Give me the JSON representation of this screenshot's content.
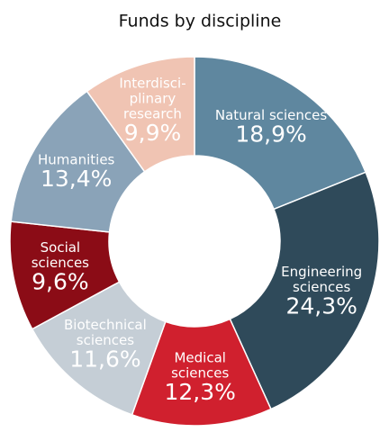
{
  "chart_data": {
    "type": "donut",
    "title": "Funds by discipline",
    "categories": [
      "Natural sciences",
      "Engineering\nsciences",
      "Medical\nsciences",
      "Biotechnical\nsciences",
      "Social\nsciences",
      "Humanities",
      "Interdisci-\nplinary\nresearch"
    ],
    "values": [
      18.9,
      24.3,
      12.3,
      11.6,
      9.6,
      13.4,
      9.9
    ],
    "value_labels": [
      "18,9%",
      "24,3%",
      "12,3%",
      "11,6%",
      "9,6%",
      "13,4%",
      "9,9%"
    ],
    "colors": [
      "#5f879f",
      "#2f4a5a",
      "#d0202e",
      "#c5ced6",
      "#8b0c16",
      "#8aa3b8",
      "#f0c4b3"
    ]
  }
}
